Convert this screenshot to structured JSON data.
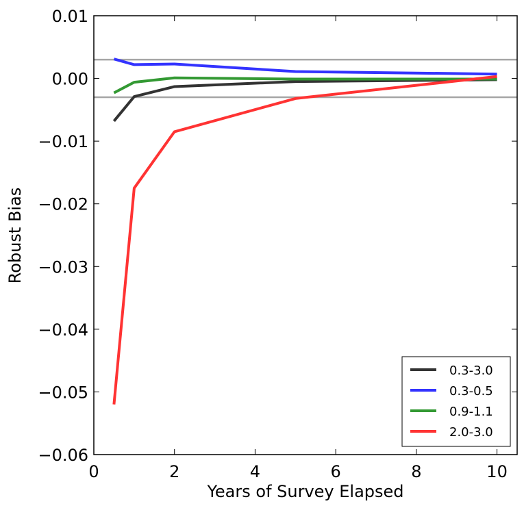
{
  "chart_data": {
    "type": "line",
    "title": "",
    "xlabel": "Years of Survey Elapsed",
    "ylabel": "Robust Bias",
    "xlim": [
      0,
      10.5
    ],
    "ylim": [
      -0.06,
      0.01
    ],
    "xticks": [
      0,
      2,
      4,
      6,
      8,
      10
    ],
    "xtick_labels": [
      "0",
      "2",
      "4",
      "6",
      "8",
      "10"
    ],
    "yticks": [
      0.01,
      0.0,
      -0.01,
      -0.02,
      -0.03,
      -0.04,
      -0.05,
      -0.06
    ],
    "ytick_labels": [
      "0.01",
      "0.00",
      "−0.01",
      "−0.02",
      "−0.03",
      "−0.04",
      "−0.05",
      "−0.06"
    ],
    "reference_lines": [
      0.003,
      -0.003
    ],
    "reference_color": "#a6a6a6",
    "grid": false,
    "legend_position": "lower-right",
    "x": [
      0.5,
      1,
      2,
      5,
      10
    ],
    "series": [
      {
        "name": "0.3-3.0",
        "color": "#333333",
        "values": [
          -0.0068,
          -0.0029,
          -0.0013,
          -0.0005,
          -0.0002
        ]
      },
      {
        "name": "0.3-0.5",
        "color": "#3333ff",
        "values": [
          0.0031,
          0.0022,
          0.0023,
          0.0011,
          0.0007
        ]
      },
      {
        "name": "0.9-1.1",
        "color": "#339933",
        "values": [
          -0.0023,
          -0.0006,
          0.0001,
          -0.0001,
          -0.0001
        ]
      },
      {
        "name": "2.0-3.0",
        "color": "#ff3333",
        "values": [
          -0.052,
          -0.0175,
          -0.0085,
          -0.0032,
          0.0003
        ]
      }
    ]
  }
}
